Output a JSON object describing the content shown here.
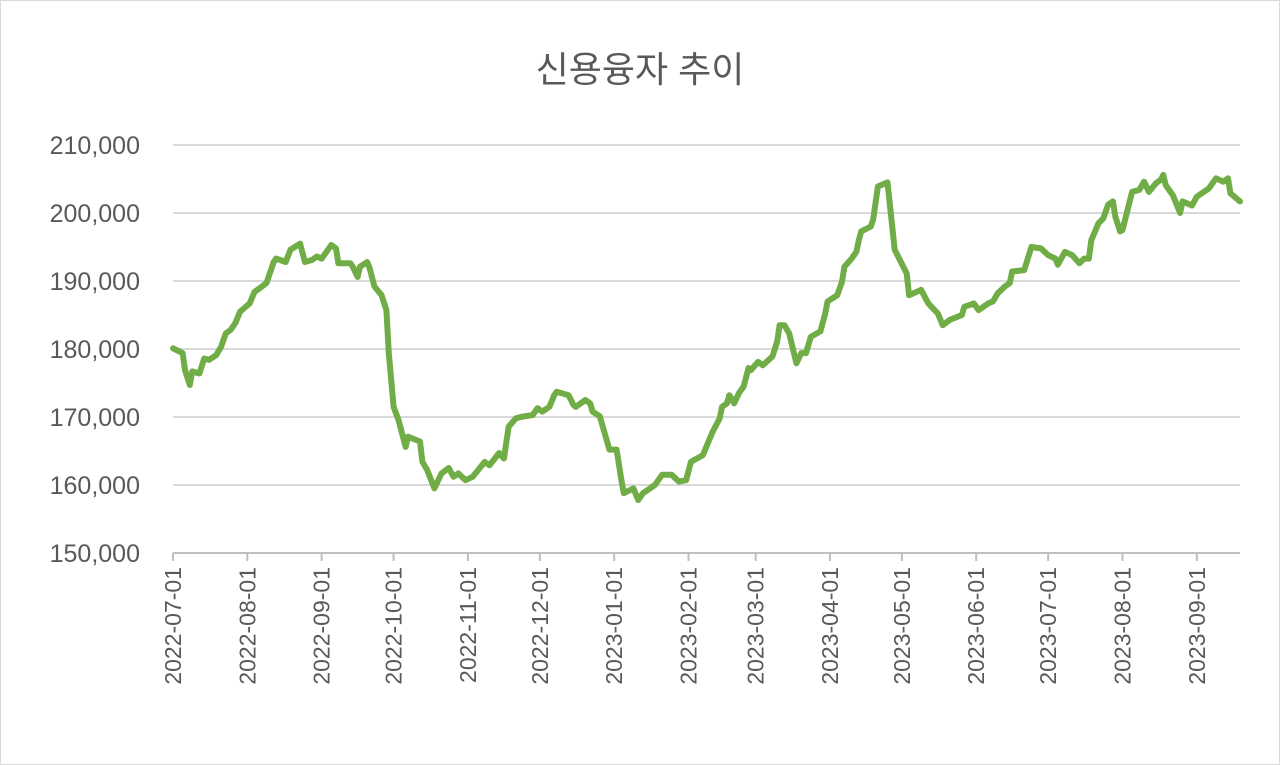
{
  "chart_data": {
    "type": "line",
    "title": "신용융자 추이",
    "xlabel": "",
    "ylabel": "",
    "ylim": [
      150000,
      210000
    ],
    "yticks": [
      "150,000",
      "160,000",
      "170,000",
      "180,000",
      "190,000",
      "200,000",
      "210,000"
    ],
    "ytick_values": [
      150000,
      160000,
      170000,
      180000,
      190000,
      200000,
      210000
    ],
    "x_start_date": "2022-07-01",
    "x_end_day": 445,
    "xticks": [
      "2022-07-01",
      "2022-08-01",
      "2022-09-01",
      "2022-10-01",
      "2022-11-01",
      "2022-12-01",
      "2023-01-01",
      "2023-02-01",
      "2023-03-01",
      "2023-04-01",
      "2023-05-01",
      "2023-06-01",
      "2023-07-01",
      "2023-08-01",
      "2023-09-01"
    ],
    "xtick_days": [
      0,
      31,
      62,
      92,
      123,
      153,
      184,
      215,
      243,
      274,
      304,
      335,
      365,
      396,
      427
    ],
    "grid": true,
    "legend": "none",
    "series": [
      {
        "name": "신용융자",
        "color": "#70AD47",
        "x_days": [
          0,
          4,
          5,
          7,
          8,
          11,
          13,
          15,
          18,
          20,
          22,
          24,
          26,
          28,
          32,
          34,
          36,
          39,
          42,
          43,
          47,
          49,
          53,
          55,
          58,
          60,
          62,
          66,
          68,
          69,
          74,
          75,
          77,
          78,
          81,
          82,
          84,
          87,
          89,
          90,
          92,
          94,
          95,
          97,
          98,
          103,
          104,
          106,
          109,
          112,
          115,
          117,
          119,
          122,
          125,
          130,
          132,
          136,
          138,
          140,
          143,
          145,
          150,
          152,
          154,
          157,
          159,
          160,
          165,
          167,
          168,
          172,
          174,
          175,
          178,
          182,
          185,
          187,
          188,
          192,
          194,
          196,
          201,
          204,
          208,
          211,
          214,
          216,
          221,
          223,
          225,
          228,
          229,
          231,
          232,
          234,
          236,
          238,
          240,
          241,
          244,
          246,
          250,
          252,
          253,
          255,
          257,
          260,
          262,
          264,
          266,
          270,
          272,
          273,
          277,
          279,
          280,
          283,
          285,
          286,
          287,
          291,
          292,
          294,
          298,
          301,
          306,
          307,
          312,
          315,
          319,
          321,
          324,
          329,
          330,
          334,
          336,
          340,
          342,
          344,
          347,
          349,
          350,
          355,
          358,
          362,
          365,
          368,
          369,
          372,
          375,
          378,
          380,
          382,
          383,
          386,
          388,
          390,
          392,
          393,
          395,
          396,
          400,
          403,
          405,
          407,
          410,
          412,
          413,
          414,
          417,
          420,
          421,
          425,
          427,
          432,
          435,
          438,
          440,
          441,
          445
        ],
        "values": [
          180100,
          179400,
          176900,
          174700,
          176700,
          176400,
          178600,
          178400,
          179100,
          180300,
          182300,
          182800,
          183800,
          185500,
          186700,
          188400,
          188900,
          189700,
          192800,
          193300,
          192800,
          194600,
          195500,
          192800,
          193100,
          193600,
          193300,
          195300,
          194800,
          192600,
          192600,
          192100,
          190600,
          192100,
          192800,
          191900,
          189200,
          187900,
          185700,
          179400,
          171500,
          169600,
          168300,
          165600,
          167100,
          166400,
          163400,
          162200,
          159500,
          161700,
          162500,
          161200,
          161700,
          160700,
          161200,
          163400,
          162900,
          164700,
          163900,
          168600,
          169800,
          170000,
          170300,
          171300,
          170800,
          171500,
          173200,
          173700,
          173200,
          171800,
          171500,
          172500,
          172000,
          170800,
          170100,
          165200,
          165200,
          160700,
          158800,
          159500,
          157800,
          158800,
          160000,
          161500,
          161500,
          160500,
          160700,
          163400,
          164400,
          166100,
          167800,
          169800,
          171500,
          172000,
          173200,
          172000,
          173500,
          174500,
          177200,
          176900,
          178100,
          177600,
          178900,
          181100,
          183500,
          183500,
          182300,
          177900,
          179400,
          179400,
          181800,
          182600,
          185200,
          187000,
          187900,
          189900,
          192100,
          193300,
          194300,
          196000,
          197300,
          198000,
          199000,
          203900,
          204500,
          194600,
          191100,
          187900,
          188700,
          186700,
          185200,
          183500,
          184300,
          185000,
          186200,
          186700,
          185700,
          186700,
          187000,
          188200,
          189200,
          189700,
          191400,
          191600,
          195000,
          194800,
          193800,
          193300,
          192400,
          194300,
          193800,
          192600,
          193300,
          193300,
          196000,
          198500,
          199200,
          201200,
          201700,
          199500,
          197300,
          197500,
          203100,
          203400,
          204600,
          203100,
          204400,
          204900,
          205600,
          204100,
          202600,
          200000,
          201700,
          201100,
          202400,
          203600,
          205100,
          204600,
          205100,
          202900,
          201700
        ]
      }
    ]
  }
}
